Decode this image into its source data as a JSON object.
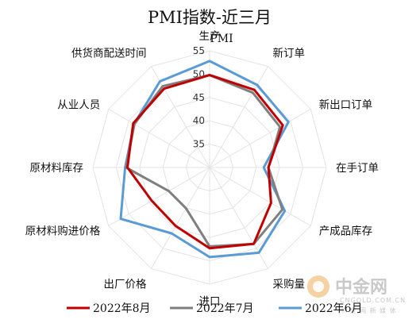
{
  "chart_data": {
    "type": "radar",
    "title": "PMI指数-近三月",
    "radial_axis_label": "PMI",
    "range": [
      30,
      55
    ],
    "ticks": [
      35,
      40,
      45,
      50,
      55
    ],
    "categories": [
      "生产",
      "新订单",
      "新出口订单",
      "在手订单",
      "产成品库存",
      "采购量",
      "进口",
      "出厂价格",
      "原材料购进价格",
      "原材料库存",
      "从业人员",
      "供货商配送时间"
    ],
    "series": [
      {
        "name": "2022年8月",
        "color": "#c00000",
        "values": [
          49.8,
          49.2,
          48.1,
          42.6,
          45.2,
          48.9,
          47.3,
          44.5,
          44.3,
          47.6,
          48.9,
          49.5
        ]
      },
      {
        "name": "2022年7月",
        "color": "#7f7f7f",
        "values": [
          49.8,
          48.5,
          47.4,
          42.6,
          48.0,
          48.9,
          46.9,
          40.1,
          40.1,
          47.9,
          48.6,
          50.1
        ]
      },
      {
        "name": "2022年6月",
        "color": "#5b9bd5",
        "values": [
          52.8,
          50.4,
          49.5,
          41.6,
          48.6,
          51.1,
          49.2,
          46.3,
          52.0,
          48.1,
          48.7,
          51.3
        ]
      }
    ],
    "legend_position": "bottom",
    "grid": true
  },
  "watermark": {
    "logo_text": "中金网",
    "url_text": "CNGOLD.COM.CN",
    "tagline": "中 金 网 新 媒 体"
  }
}
